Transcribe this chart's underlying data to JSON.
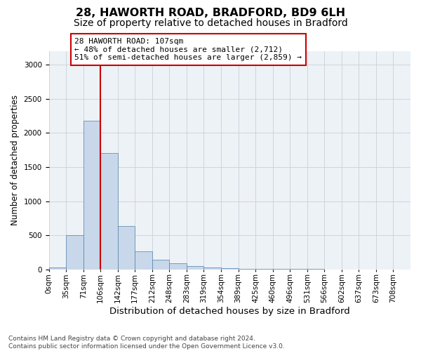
{
  "title_line1": "28, HAWORTH ROAD, BRADFORD, BD9 6LH",
  "title_line2": "Size of property relative to detached houses in Bradford",
  "xlabel": "Distribution of detached houses by size in Bradford",
  "ylabel": "Number of detached properties",
  "bin_labels": [
    "0sqm",
    "35sqm",
    "71sqm",
    "106sqm",
    "142sqm",
    "177sqm",
    "212sqm",
    "248sqm",
    "283sqm",
    "319sqm",
    "354sqm",
    "389sqm",
    "425sqm",
    "460sqm",
    "496sqm",
    "531sqm",
    "566sqm",
    "602sqm",
    "637sqm",
    "673sqm",
    "708sqm"
  ],
  "bar_values": [
    30,
    500,
    2180,
    1700,
    640,
    260,
    140,
    90,
    50,
    30,
    15,
    10,
    8,
    5,
    4,
    3,
    2,
    2,
    1,
    1,
    1
  ],
  "bar_color": "#c8d8ea",
  "bar_edge_color": "#5080a8",
  "bar_edge_width": 0.5,
  "grid_color": "#c8d0d8",
  "background_color": "#ffffff",
  "plot_bg_color": "#edf2f7",
  "red_line_x": 3,
  "red_line_color": "#cc0000",
  "annotation_text": "28 HAWORTH ROAD: 107sqm\n← 48% of detached houses are smaller (2,712)\n51% of semi-detached houses are larger (2,859) →",
  "annotation_box_facecolor": "#ffffff",
  "annotation_box_edgecolor": "#cc0000",
  "ylim": [
    0,
    3200
  ],
  "yticks": [
    0,
    500,
    1000,
    1500,
    2000,
    2500,
    3000
  ],
  "footnote": "Contains HM Land Registry data © Crown copyright and database right 2024.\nContains public sector information licensed under the Open Government Licence v3.0.",
  "title_fontsize": 11.5,
  "subtitle_fontsize": 10,
  "xlabel_fontsize": 9.5,
  "ylabel_fontsize": 8.5,
  "tick_fontsize": 7.5,
  "annot_fontsize": 8,
  "footnote_fontsize": 6.5
}
